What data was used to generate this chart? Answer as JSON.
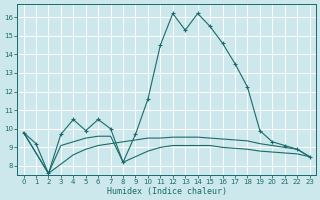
{
  "xlabel": "Humidex (Indice chaleur)",
  "background_color": "#cce8ec",
  "grid_color": "#ffffff",
  "line_color": "#1a6b6b",
  "xlim": [
    -0.5,
    23.5
  ],
  "ylim": [
    7.5,
    16.7
  ],
  "xticks": [
    0,
    1,
    2,
    3,
    4,
    5,
    6,
    7,
    8,
    9,
    10,
    11,
    12,
    13,
    14,
    15,
    16,
    17,
    18,
    19,
    20,
    21,
    22,
    23
  ],
  "yticks": [
    8,
    9,
    10,
    11,
    12,
    13,
    14,
    15,
    16
  ],
  "series_main": {
    "x": [
      0,
      1,
      2,
      3,
      4,
      5,
      6,
      7,
      8,
      9,
      10,
      11,
      12,
      13,
      14,
      15,
      16,
      17,
      18,
      19,
      20,
      21,
      22,
      23
    ],
    "y": [
      9.8,
      9.2,
      7.6,
      9.7,
      10.5,
      9.9,
      10.5,
      10.0,
      8.2,
      9.7,
      11.6,
      14.5,
      16.2,
      15.3,
      16.2,
      15.5,
      14.6,
      13.5,
      12.25,
      9.9,
      9.3,
      9.1,
      8.9,
      8.5
    ]
  },
  "series_line2": {
    "x": [
      0,
      2,
      3,
      4,
      5,
      6,
      7,
      8,
      9,
      10,
      11,
      12,
      13,
      14,
      15,
      16,
      17,
      18,
      19,
      20,
      21,
      22,
      23
    ],
    "y": [
      9.8,
      7.6,
      8.1,
      8.6,
      8.9,
      9.1,
      9.2,
      9.3,
      9.4,
      9.5,
      9.5,
      9.55,
      9.55,
      9.55,
      9.5,
      9.45,
      9.4,
      9.35,
      9.2,
      9.1,
      9.0,
      8.9,
      8.5
    ]
  },
  "series_line3": {
    "x": [
      0,
      2,
      3,
      4,
      5,
      6,
      7,
      8,
      9,
      10,
      11,
      12,
      13,
      14,
      15,
      16,
      17,
      18,
      19,
      20,
      21,
      22,
      23
    ],
    "y": [
      9.8,
      7.6,
      9.1,
      9.3,
      9.5,
      9.6,
      9.6,
      8.2,
      8.5,
      8.8,
      9.0,
      9.1,
      9.1,
      9.1,
      9.1,
      9.0,
      8.95,
      8.9,
      8.8,
      8.75,
      8.7,
      8.65,
      8.5
    ]
  }
}
